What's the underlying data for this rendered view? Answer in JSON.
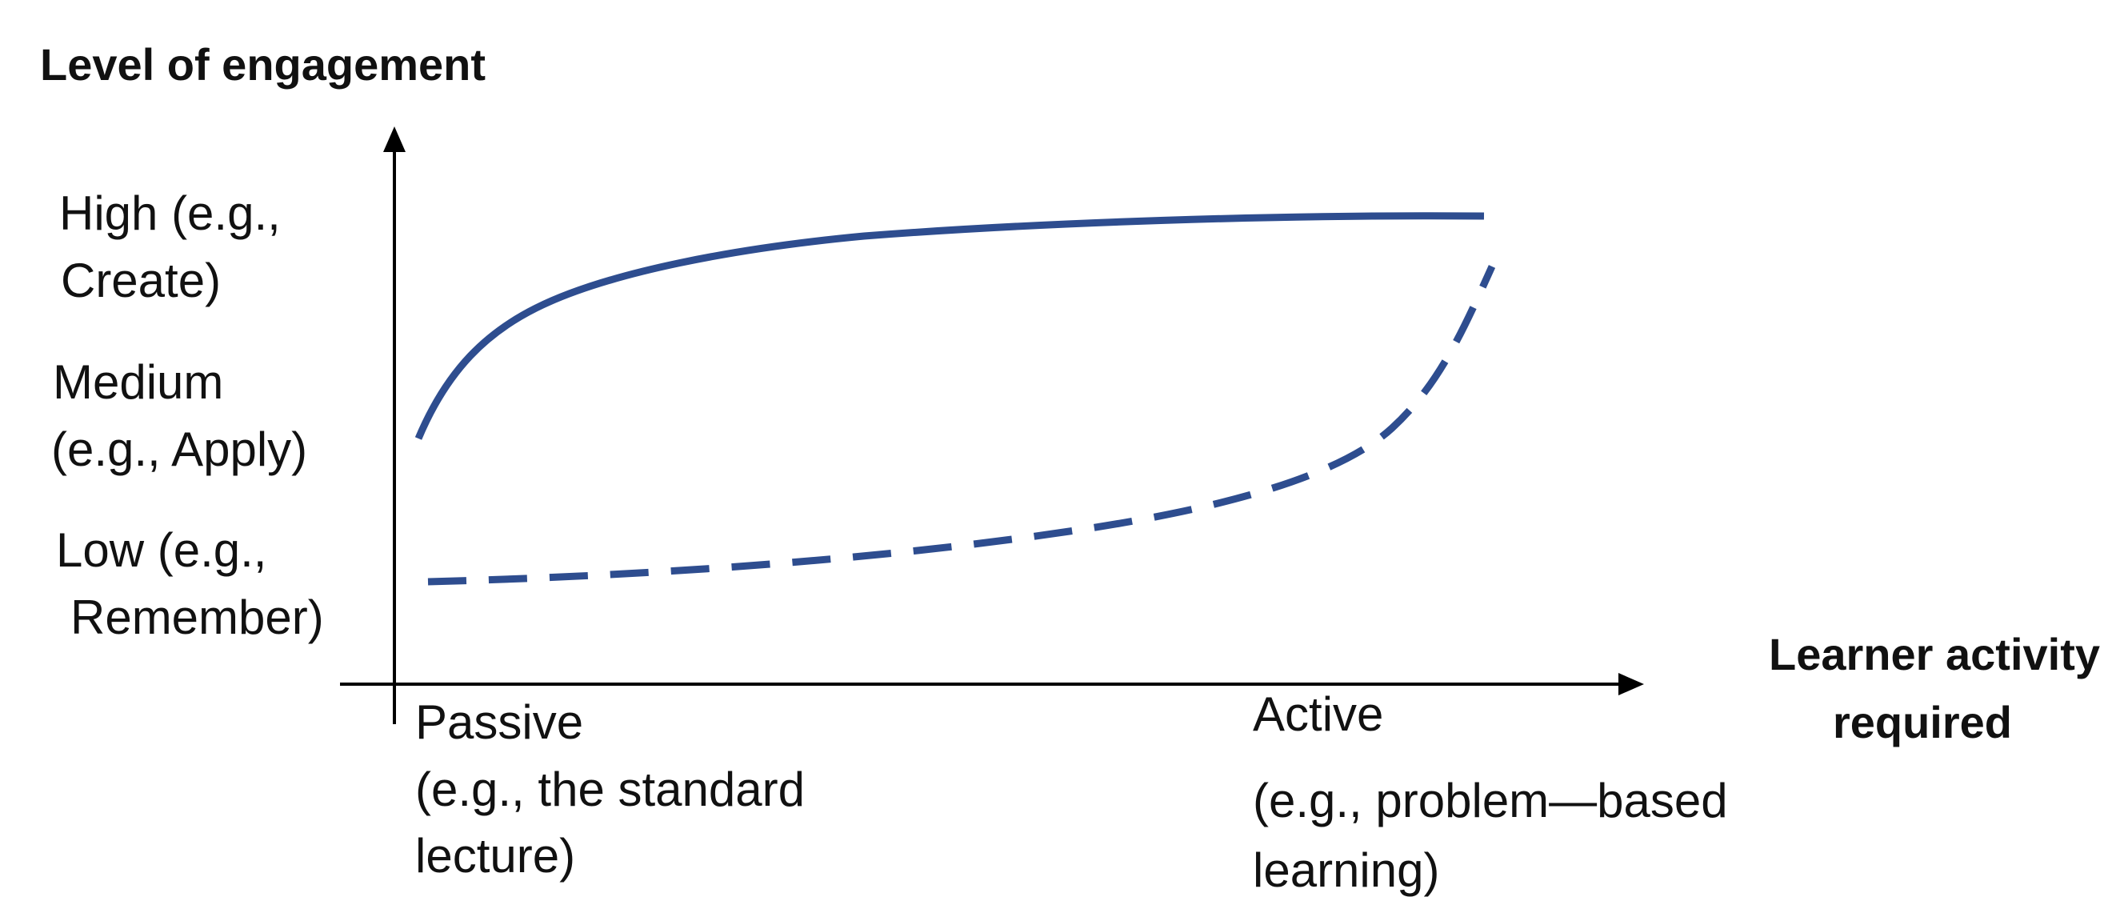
{
  "y_axis": {
    "title": "Level of engagement",
    "ticks": [
      {
        "lines": [
          "High (e.g.,",
          "Create)"
        ]
      },
      {
        "lines": [
          "Medium",
          "(e.g., Apply)"
        ]
      },
      {
        "lines": [
          "Low (e.g.,",
          "Remember)"
        ]
      }
    ]
  },
  "x_axis": {
    "title_lines": [
      "Learner activity",
      "required"
    ],
    "ticks": [
      {
        "lines": [
          "Passive",
          "(e.g., the standard",
          "lecture)"
        ]
      },
      {
        "lines": [
          "Active",
          "(e.g., problem—based",
          "learning)"
        ]
      }
    ]
  },
  "colors": {
    "curve": "#2E4D8F",
    "axis": "#000000",
    "text": "#111111"
  },
  "curves": [
    {
      "style": "solid"
    },
    {
      "style": "dashed"
    }
  ]
}
